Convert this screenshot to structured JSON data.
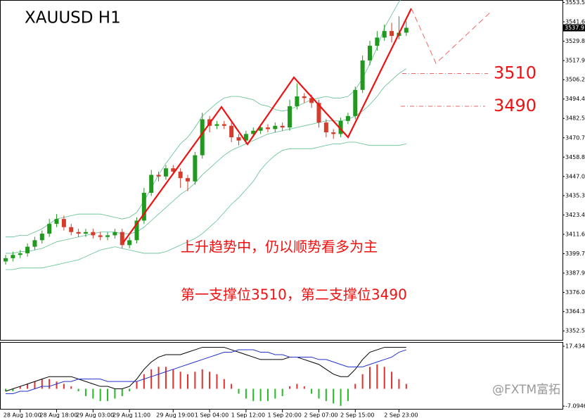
{
  "chart_data": {
    "type": "candlestick",
    "title": "XAUUSD  H1",
    "categories": [
      null,
      null,
      "28 Aug 10:00",
      null,
      null,
      null,
      null,
      "28 Aug 18:00",
      null,
      null,
      null,
      null,
      "29 Aug 03:00",
      null,
      null,
      null,
      null,
      "29 Aug 11:00",
      null,
      null,
      null,
      null,
      null,
      "29 Aug 19:00",
      null,
      null,
      null,
      null,
      "1 Sep 04:00",
      null,
      null,
      null,
      null,
      "1 Sep 12:00",
      null,
      null,
      null,
      null,
      "1 Sep 20:00",
      null,
      null,
      null,
      null,
      "2 Sep 07:00",
      null,
      null,
      null,
      null,
      "2 Sep 15:00",
      null,
      null,
      null,
      null,
      null,
      "2 Sep 23:00",
      null
    ],
    "open": [
      3395,
      3397,
      3399,
      3400,
      3404,
      3408,
      3412,
      3418,
      3421,
      3416,
      3413,
      3412,
      3413,
      3411,
      3410,
      3411,
      3413,
      3405,
      3408,
      3420,
      3437,
      3448,
      3447,
      3452,
      3450,
      3446,
      3444,
      3460,
      3482,
      3478,
      3479,
      3478,
      3471,
      3469,
      3473,
      3475,
      3477,
      3476,
      3478,
      3477,
      3490,
      3496,
      3495,
      3492,
      3480,
      3474,
      3473,
      3481,
      3484,
      3500,
      3518,
      3527,
      3532,
      3536,
      3533,
      3535
    ],
    "high": [
      3399,
      3401,
      3402,
      3406,
      3410,
      3414,
      3421,
      3424,
      3423,
      3418,
      3415,
      3415,
      3415,
      3413,
      3413,
      3415,
      3415,
      3410,
      3422,
      3440,
      3451,
      3450,
      3454,
      3454,
      3452,
      3448,
      3462,
      3486,
      3484,
      3481,
      3481,
      3480,
      3473,
      3475,
      3477,
      3479,
      3479,
      3480,
      3480,
      3494,
      3504,
      3498,
      3497,
      3494,
      3482,
      3476,
      3483,
      3486,
      3502,
      3521,
      3530,
      3536,
      3540,
      3541,
      3545,
      3542
    ],
    "low": [
      3393,
      3395,
      3397,
      3398,
      3402,
      3406,
      3410,
      3416,
      3414,
      3411,
      3410,
      3410,
      3409,
      3408,
      3408,
      3409,
      3403,
      3403,
      3406,
      3418,
      3435,
      3444,
      3445,
      3448,
      3440,
      3438,
      3442,
      3458,
      3474,
      3476,
      3476,
      3468,
      3466,
      3467,
      3471,
      3473,
      3474,
      3474,
      3475,
      3475,
      3488,
      3492,
      3489,
      3477,
      3471,
      3470,
      3471,
      3479,
      3482,
      3498,
      3515,
      3524,
      3530,
      3529,
      3531,
      3533
    ],
    "close": [
      3397,
      3399,
      3400,
      3404,
      3408,
      3412,
      3418,
      3421,
      3416,
      3413,
      3412,
      3413,
      3411,
      3410,
      3411,
      3413,
      3405,
      3408,
      3420,
      3437,
      3448,
      3447,
      3452,
      3450,
      3446,
      3444,
      3460,
      3482,
      3478,
      3479,
      3478,
      3471,
      3469,
      3473,
      3475,
      3477,
      3476,
      3478,
      3477,
      3490,
      3496,
      3495,
      3492,
      3480,
      3474,
      3473,
      3481,
      3484,
      3500,
      3518,
      3527,
      3532,
      3536,
      3533,
      3535,
      3538
    ],
    "up_color": "#1f9a1f",
    "down_color": "#d43c2c",
    "upper_band": [
      3410,
      3410,
      3411,
      3411,
      3413,
      3415,
      3418,
      3421,
      3422,
      3423,
      3424,
      3424,
      3424,
      3424,
      3423,
      3422,
      3421,
      3422,
      3425,
      3432,
      3440,
      3448,
      3455,
      3461,
      3467,
      3471,
      3477,
      3484,
      3488,
      3492,
      3495,
      3496,
      3496,
      3495,
      3494,
      3491,
      3490,
      3488,
      3487,
      3488,
      3490,
      3492,
      3494,
      3495,
      3496,
      3495,
      3495,
      3496,
      3500,
      3507,
      3516,
      3526,
      3538,
      3546,
      3554,
      3559
    ],
    "middle_band": [
      3400,
      3400,
      3401,
      3401,
      3402,
      3403,
      3405,
      3407,
      3408,
      3409,
      3410,
      3411,
      3412,
      3413,
      3413,
      3413,
      3412,
      3412,
      3413,
      3416,
      3420,
      3424,
      3428,
      3432,
      3436,
      3439,
      3443,
      3448,
      3452,
      3456,
      3460,
      3463,
      3465,
      3467,
      3469,
      3471,
      3473,
      3474,
      3475,
      3476,
      3477,
      3478,
      3479,
      3480,
      3481,
      3481,
      3481,
      3482,
      3484,
      3487,
      3491,
      3496,
      3502,
      3506,
      3510,
      3513
    ],
    "lower_band": [
      3390,
      3390,
      3391,
      3391,
      3391,
      3391,
      3392,
      3393,
      3394,
      3395,
      3396,
      3398,
      3400,
      3402,
      3403,
      3404,
      3403,
      3402,
      3401,
      3400,
      3400,
      3400,
      3401,
      3403,
      3405,
      3407,
      3409,
      3412,
      3416,
      3420,
      3425,
      3430,
      3434,
      3439,
      3444,
      3451,
      3456,
      3460,
      3463,
      3464,
      3464,
      3464,
      3464,
      3465,
      3466,
      3467,
      3467,
      3468,
      3468,
      3467,
      3466,
      3466,
      3466,
      3466,
      3466,
      3467
    ],
    "band_color": "#5fbf8f",
    "ylim": [
      3347,
      3555
    ],
    "yticks": [
      {
        "value": 3553.5,
        "label": "3553.50"
      },
      3541.65,
      {
        "value": 3529.8,
        "label": "3529.80"
      },
      3517.95,
      3506.25,
      {
        "value": 3494.4,
        "label": "3494.40"
      },
      3482.55,
      {
        "value": 3470.7,
        "label": "3470.70"
      },
      3458.85,
      {
        "value": 3447,
        "label": "3447.00"
      },
      {
        "value": 3435.3,
        "label": "3435.30"
      },
      3423.45,
      {
        "value": 3411.6,
        "label": "3411.60"
      },
      3399.75,
      {
        "value": 3387.9,
        "label": "3387.90"
      },
      3376.05,
      3364.35,
      {
        "value": 3352.5,
        "label": "3352.50"
      }
    ],
    "last_price": 3537.97,
    "support_levels": [
      3510,
      3490
    ],
    "annotations": [
      "上升趋势中，仍以顺势看多为主",
      "第一支撑位3510，第二支撑位3490"
    ],
    "indicator": {
      "ylim": [
        -8.5,
        18.9
      ],
      "yticks": [
        17.4349,
        -7.0946
      ],
      "histogram": [
        -1,
        -1,
        1,
        2,
        3,
        4,
        4,
        3,
        2,
        1,
        -1,
        -3,
        -4,
        -5,
        -5,
        -4,
        -3,
        -1,
        3,
        6,
        8,
        9,
        9,
        8,
        7,
        6,
        7,
        8,
        7,
        6,
        4,
        2,
        -2,
        -4,
        -5,
        -5,
        -5,
        -4,
        -3,
        1,
        2,
        1,
        -2,
        -4,
        -5,
        -6,
        -7,
        -5,
        2,
        6,
        9,
        10,
        9,
        7,
        4,
        2
      ],
      "line": [
        -1,
        0,
        1,
        2,
        3,
        4,
        5,
        5,
        5,
        5,
        4,
        3,
        2,
        1,
        1,
        0,
        0,
        1,
        4,
        8,
        11,
        13,
        14,
        14,
        14,
        15,
        16,
        17,
        17,
        17,
        17,
        16,
        15,
        14,
        13,
        12,
        12,
        12,
        12,
        13,
        13,
        12,
        11,
        10,
        8,
        6,
        5,
        5,
        8,
        12,
        15,
        16,
        17,
        17,
        17,
        17
      ],
      "signal": [
        -2,
        -2,
        -1,
        -1,
        0,
        1,
        1,
        2,
        3,
        3,
        4,
        4,
        4,
        4,
        3,
        3,
        3,
        3,
        3,
        4,
        5,
        6,
        7,
        8,
        9,
        10,
        11,
        12,
        13,
        14,
        15,
        15,
        16,
        16,
        16,
        15,
        15,
        14,
        14,
        13,
        13,
        13,
        13,
        12,
        12,
        11,
        10,
        9,
        9,
        9,
        10,
        11,
        12,
        13,
        15,
        16
      ],
      "line_color": "#000000",
      "signal_color": "#2233cc",
      "up_color": "#e03030",
      "down_color": "#22bb22"
    },
    "watermark": "@FXTM富拓"
  }
}
